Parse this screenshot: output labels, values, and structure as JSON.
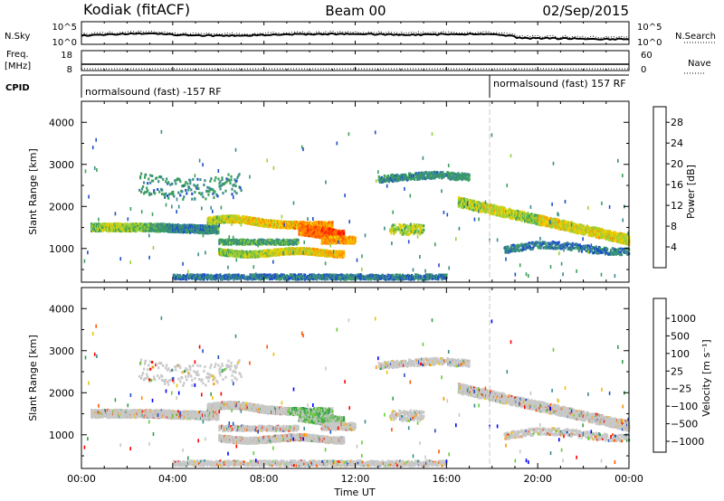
{
  "header": {
    "title_left": "Kodiak (fitACF)",
    "title_center": "Beam 00",
    "title_right": "02/Sep/2015"
  },
  "sky_panel": {
    "left_label": "N.Sky",
    "right_label": "N.Search",
    "ytick_top": "10^5",
    "ytick_bottom": "10^0",
    "rtick_top": "10^5",
    "rtick_bottom": "10^0"
  },
  "freq_panel": {
    "left_label_1": "Freq.",
    "left_label_2": "[MHz]",
    "right_label": "Nave",
    "ytick_top": "18",
    "ytick_bottom": "8",
    "rtick_top": "60",
    "rtick_bottom": "0"
  },
  "cpid_panel": {
    "label": "CPID",
    "seg1": "normalsound (fast) -157 RF",
    "seg2": "normalsound (fast) 157 RF"
  },
  "colors": {
    "power_scale": [
      "#0000ff",
      "#1f4fc8",
      "#3a8a8a",
      "#3aa05a",
      "#9ad13a",
      "#f0d000",
      "#ff9000",
      "#ff5500",
      "#ff0000"
    ],
    "velocity_scale": [
      "#ff0000",
      "#ff5500",
      "#ff9000",
      "#f0c000",
      "#c8c8c8",
      "#c8c8c8",
      "#66cc33",
      "#2e9e4a",
      "#3a8a8a",
      "#1f4fc8",
      "#0000ff"
    ]
  },
  "chart_data": [
    {
      "type": "heatmap",
      "name_key": "power",
      "ylabel": "Slant Range [km]",
      "yticks": [
        "1000",
        "2000",
        "3000",
        "4000"
      ],
      "ylim": [
        200,
        4500
      ],
      "xlim_hours": [
        0,
        24
      ],
      "colorbar_label": "Power [dB]",
      "colorbar_ticks": [
        "4",
        "8",
        "12",
        "16",
        "20",
        "24",
        "28"
      ],
      "colorbar_range": [
        0,
        31
      ]
    },
    {
      "type": "heatmap",
      "name_key": "velocity",
      "ylabel": "Slant Range [km]",
      "yticks": [
        "1000",
        "2000",
        "3000",
        "4000"
      ],
      "ylim": [
        200,
        4500
      ],
      "xlim_hours": [
        0,
        24
      ],
      "colorbar_label": "Velocity [m s⁻¹]",
      "colorbar_ticks": [
        "1000",
        "500",
        "100",
        "25",
        "−25",
        "−100",
        "−500",
        "−1000"
      ]
    }
  ],
  "xaxis": {
    "ticks": [
      "00:00",
      "04:00",
      "08:00",
      "12:00",
      "16:00",
      "20:00",
      "00:00"
    ],
    "label": "Time UT"
  }
}
